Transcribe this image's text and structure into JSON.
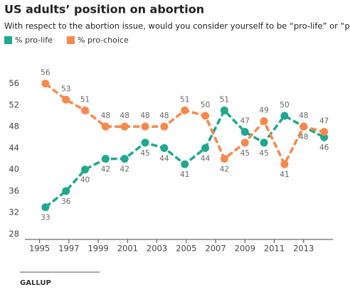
{
  "chart_data": {
    "type": "line",
    "title": "US adults’ position on abortion",
    "subtitle": "With respect to the abortion issue, would you consider yourself to be “pro-life” or “pro-choice”?",
    "source": "GALLUP",
    "x": [
      1995.4,
      1996.8,
      1998.1,
      1999.5,
      2000.8,
      2002.2,
      2003.5,
      2004.9,
      2006.3,
      2007.6,
      2009.0,
      2010.3,
      2011.7,
      2013.0,
      2014.4
    ],
    "series": [
      {
        "name": "% pro-life",
        "color": "#1fa88f",
        "values": [
          33,
          36,
          40,
          42,
          42,
          45,
          44,
          41,
          44,
          51,
          47,
          45,
          50,
          48,
          46
        ]
      },
      {
        "name": "% pro-choice",
        "color": "#f7884b",
        "values": [
          56,
          53,
          51,
          48,
          48,
          48,
          48,
          51,
          50,
          42,
          45,
          49,
          41,
          48,
          47
        ]
      }
    ],
    "xlim": [
      1994,
      2015
    ],
    "xticks": [
      1995,
      1997,
      1999,
      2001,
      2003,
      2005,
      2007,
      2009,
      2011,
      2013
    ],
    "ylim": [
      27,
      57
    ],
    "yticks": [
      28,
      32,
      36,
      40,
      44,
      48,
      52,
      56
    ]
  }
}
